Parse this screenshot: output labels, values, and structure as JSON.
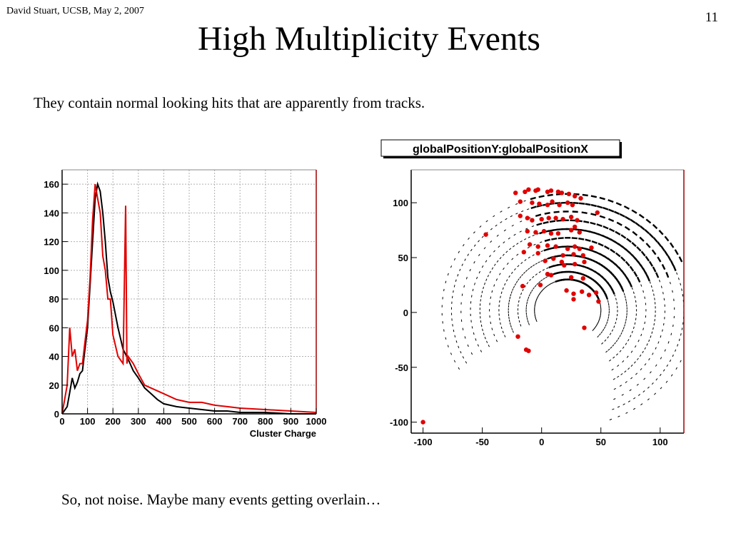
{
  "slide": {
    "author": "David Stuart, UCSB, May 2, 2007",
    "number": "11",
    "title": "High Multiplicity Events",
    "bullet": "They contain normal looking hits that are apparently from tracks.",
    "footer": "So, not noise. Maybe many events getting overlain…"
  },
  "colors": {
    "series_black": "#000000",
    "series_red": "#e00000",
    "grid": "#b0b0b0",
    "frame_right": "#a00000"
  },
  "chart_data": [
    {
      "type": "line",
      "title": "",
      "xlabel": "Cluster Charge",
      "ylabel": "",
      "xlim": [
        0,
        1000
      ],
      "ylim": [
        0,
        170
      ],
      "grid": true,
      "xticks": [
        "0",
        "100",
        "200",
        "300",
        "400",
        "500",
        "600",
        "700",
        "800",
        "900",
        "1000"
      ],
      "yticks": [
        "0",
        "20",
        "40",
        "60",
        "80",
        "100",
        "120",
        "140",
        "160"
      ],
      "series": [
        {
          "color": "#000000",
          "x": [
            0,
            20,
            30,
            40,
            50,
            60,
            70,
            80,
            90,
            100,
            110,
            120,
            130,
            140,
            150,
            160,
            170,
            180,
            190,
            200,
            220,
            240,
            260,
            280,
            300,
            325,
            350,
            375,
            400,
            450,
            500,
            550,
            600,
            650,
            700,
            800,
            900,
            1000
          ],
          "y": [
            0,
            5,
            15,
            25,
            18,
            22,
            28,
            30,
            45,
            60,
            90,
            120,
            150,
            160,
            155,
            140,
            120,
            95,
            85,
            78,
            60,
            45,
            38,
            30,
            25,
            18,
            14,
            10,
            7,
            5,
            4,
            3,
            2,
            2,
            1,
            1,
            0,
            0
          ]
        },
        {
          "color": "#e00000",
          "x": [
            0,
            20,
            30,
            40,
            50,
            60,
            70,
            80,
            90,
            100,
            110,
            120,
            130,
            140,
            150,
            160,
            170,
            180,
            190,
            200,
            220,
            240,
            250,
            255,
            260,
            280,
            300,
            325,
            350,
            375,
            400,
            450,
            500,
            550,
            600,
            650,
            700,
            800,
            900,
            1000
          ],
          "y": [
            0,
            20,
            60,
            40,
            45,
            30,
            35,
            35,
            50,
            65,
            95,
            135,
            160,
            150,
            140,
            110,
            100,
            80,
            80,
            55,
            40,
            35,
            145,
            35,
            40,
            35,
            28,
            20,
            18,
            16,
            14,
            10,
            8,
            8,
            6,
            5,
            4,
            3,
            2,
            1
          ]
        }
      ]
    },
    {
      "type": "scatter",
      "title": "globalPositionY:globalPositionX",
      "xlabel": "",
      "ylabel": "",
      "xlim": [
        -110,
        120
      ],
      "ylim": [
        -110,
        130
      ],
      "grid": false,
      "xticks": [
        "-100",
        "-50",
        "0",
        "50",
        "100"
      ],
      "yticks": [
        "-100",
        "-50",
        "0",
        "50",
        "100"
      ],
      "series": [
        {
          "color": "#e00000",
          "points": [
            [
              -100,
              -100
            ],
            [
              -47,
              71
            ],
            [
              -22,
              109
            ],
            [
              -14,
              110
            ],
            [
              -11,
              112
            ],
            [
              -5,
              111
            ],
            [
              -3,
              112
            ],
            [
              5,
              110
            ],
            [
              8,
              111
            ],
            [
              14,
              110
            ],
            [
              17,
              109
            ],
            [
              23,
              108
            ],
            [
              28,
              106
            ],
            [
              33,
              104
            ],
            [
              47,
              91
            ],
            [
              -18,
              101
            ],
            [
              -8,
              100
            ],
            [
              -2,
              99
            ],
            [
              5,
              98
            ],
            [
              9,
              101
            ],
            [
              15,
              98
            ],
            [
              22,
              100
            ],
            [
              26,
              98
            ],
            [
              -18,
              88
            ],
            [
              -12,
              86
            ],
            [
              -8,
              84
            ],
            [
              0,
              85
            ],
            [
              6,
              86
            ],
            [
              12,
              86
            ],
            [
              18,
              85
            ],
            [
              25,
              87
            ],
            [
              30,
              84
            ],
            [
              -12,
              74
            ],
            [
              -5,
              73
            ],
            [
              2,
              74
            ],
            [
              8,
              72
            ],
            [
              14,
              72
            ],
            [
              25,
              75
            ],
            [
              32,
              73
            ],
            [
              28,
              78
            ],
            [
              -10,
              62
            ],
            [
              -3,
              60
            ],
            [
              5,
              61
            ],
            [
              12,
              60
            ],
            [
              22,
              58
            ],
            [
              28,
              60
            ],
            [
              32,
              58
            ],
            [
              42,
              59
            ],
            [
              -15,
              55
            ],
            [
              -3,
              54
            ],
            [
              18,
              52
            ],
            [
              27,
              53
            ],
            [
              35,
              52
            ],
            [
              3,
              47
            ],
            [
              10,
              49
            ],
            [
              17,
              46
            ],
            [
              19,
              43
            ],
            [
              28,
              44
            ],
            [
              36,
              46
            ],
            [
              5,
              35
            ],
            [
              8,
              34
            ],
            [
              25,
              32
            ],
            [
              35,
              31
            ],
            [
              -16,
              24
            ],
            [
              -1,
              25
            ],
            [
              21,
              20
            ],
            [
              27,
              17
            ],
            [
              34,
              19
            ],
            [
              40,
              16
            ],
            [
              46,
              18
            ],
            [
              27,
              12
            ],
            [
              48,
              10
            ],
            [
              36,
              -14
            ],
            [
              -20,
              -22
            ],
            [
              -13,
              -34
            ],
            [
              -11,
              -35
            ]
          ]
        }
      ]
    }
  ]
}
